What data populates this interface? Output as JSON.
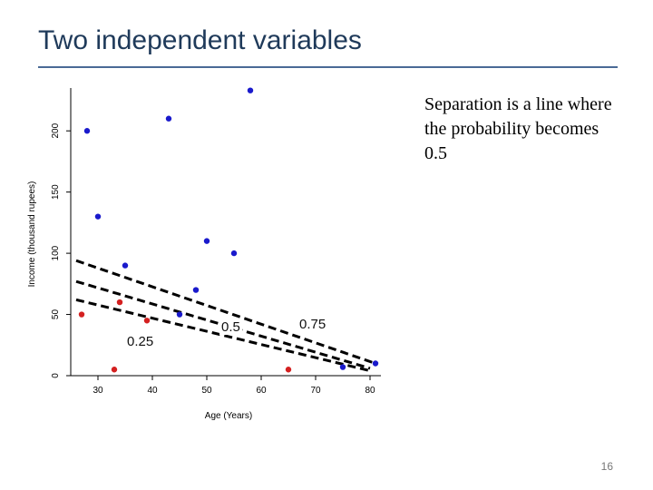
{
  "slide": {
    "title": "Two independent variables",
    "caption": "Separation is a line where the probability becomes 0.5",
    "page_number": "16"
  },
  "colors": {
    "title": "#1f3a5a",
    "rule": "#4a6a96",
    "class_high": "#1a1acc",
    "class_low": "#d42020",
    "line": "#000000"
  },
  "chart_data": {
    "type": "scatter",
    "xlabel": "Age (Years)",
    "ylabel": "Income (thousand rupees)",
    "xlim": [
      25,
      82
    ],
    "ylim": [
      0,
      235
    ],
    "x_ticks": [
      30,
      40,
      50,
      60,
      70,
      80
    ],
    "y_ticks": [
      0,
      50,
      100,
      150,
      200
    ],
    "grid": false,
    "series": [
      {
        "color": "#1a1acc",
        "points": [
          {
            "x": 28,
            "y": 200
          },
          {
            "x": 30,
            "y": 130
          },
          {
            "x": 35,
            "y": 90
          },
          {
            "x": 43,
            "y": 210
          },
          {
            "x": 45,
            "y": 50
          },
          {
            "x": 48,
            "y": 70
          },
          {
            "x": 50,
            "y": 110
          },
          {
            "x": 55,
            "y": 100
          },
          {
            "x": 58,
            "y": 233
          },
          {
            "x": 75,
            "y": 7
          },
          {
            "x": 81,
            "y": 10
          }
        ]
      },
      {
        "color": "#d42020",
        "points": [
          {
            "x": 27,
            "y": 50
          },
          {
            "x": 33,
            "y": 5
          },
          {
            "x": 34,
            "y": 60
          },
          {
            "x": 39,
            "y": 45
          },
          {
            "x": 65,
            "y": 5
          }
        ]
      }
    ],
    "lines": [
      {
        "label": "0.25",
        "x": [
          26,
          80
        ],
        "y": [
          62,
          4
        ]
      },
      {
        "label": "0.5",
        "x": [
          26,
          80
        ],
        "y": [
          77,
          6
        ]
      },
      {
        "label": "0.75",
        "x": [
          26,
          81
        ],
        "y": [
          94,
          10
        ]
      }
    ]
  }
}
